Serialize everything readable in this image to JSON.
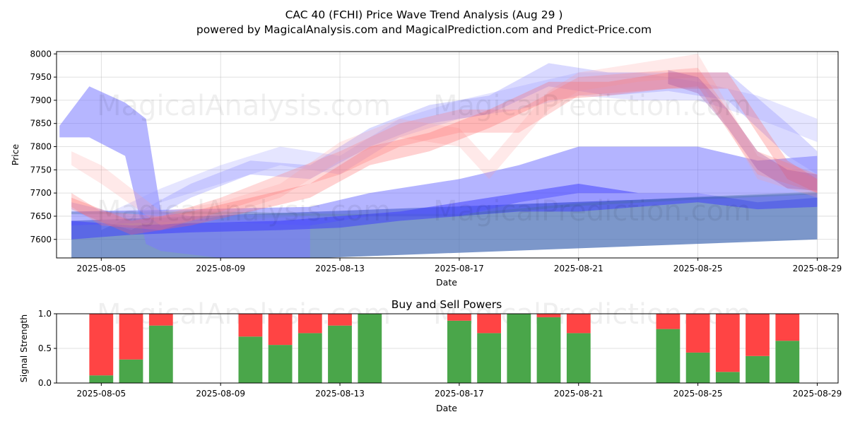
{
  "chart_data": [
    {
      "type": "area",
      "title": "CAC 40 (FCHI) Price Wave Trend Analysis (Aug 29 )",
      "subtitle": "powered by MagicalAnalysis.com and MagicalPrediction.com and Predict-Price.com",
      "xlabel": "Date",
      "ylabel": "Price",
      "x_start": "2025-08-04",
      "x_end": "2025-08-30",
      "xlim_days": [
        -0.5,
        25.7
      ],
      "ylim": [
        7560,
        8005
      ],
      "x_ticks": [
        "2025-08-05",
        "2025-08-09",
        "2025-08-13",
        "2025-08-17",
        "2025-08-21",
        "2025-08-25",
        "2025-08-29"
      ],
      "x_tick_days": [
        1,
        5,
        9,
        13,
        17,
        21,
        25
      ],
      "y_ticks": [
        7600,
        7650,
        7700,
        7750,
        7800,
        7850,
        7900,
        7950,
        8000
      ],
      "grid": true,
      "bands": [
        {
          "name": "base-steel",
          "color": "#4a6fb5",
          "opacity": 0.72,
          "days": [
            0,
            25
          ],
          "upper": [
            7640,
            7700
          ],
          "lower": [
            7540,
            7600
          ]
        },
        {
          "name": "green-edge",
          "color": "#5c9a5c",
          "opacity": 0.45,
          "days": [
            0,
            5,
            9,
            13,
            17,
            21,
            25
          ],
          "upper": [
            7660,
            7660,
            7655,
            7655,
            7678,
            7692,
            7703
          ],
          "lower": [
            7654,
            7654,
            7650,
            7650,
            7672,
            7686,
            7697
          ]
        },
        {
          "name": "blue-rise",
          "color": "#6a6aff",
          "opacity": 0.5,
          "days": [
            0,
            4,
            8,
            10,
            13,
            15,
            17,
            19,
            21,
            23,
            25
          ],
          "upper": [
            7660,
            7665,
            7670,
            7700,
            7730,
            7760,
            7800,
            7800,
            7800,
            7770,
            7780
          ],
          "lower": [
            7630,
            7640,
            7630,
            7650,
            7650,
            7680,
            7700,
            7700,
            7700,
            7680,
            7690
          ]
        },
        {
          "name": "blue-spike",
          "color": "#7a7aff",
          "opacity": 0.55,
          "days": [
            -0.4,
            0.6,
            1.8,
            2.5,
            3,
            5,
            8
          ],
          "upper": [
            7845,
            7930,
            7895,
            7860,
            7660,
            7640,
            7650
          ],
          "lower": [
            7820,
            7820,
            7780,
            7590,
            7575,
            7560,
            7560
          ]
        },
        {
          "name": "blue-low",
          "color": "#3a3aff",
          "opacity": 0.5,
          "days": [
            0,
            2,
            4,
            7,
            9,
            11,
            13,
            15,
            17,
            19,
            21,
            23,
            25
          ],
          "upper": [
            7640,
            7630,
            7635,
            7640,
            7650,
            7660,
            7680,
            7700,
            7720,
            7700,
            7700,
            7680,
            7690
          ],
          "lower": [
            7600,
            7610,
            7615,
            7620,
            7625,
            7640,
            7650,
            7660,
            7660,
            7670,
            7680,
            7665,
            7670
          ]
        },
        {
          "name": "blue-wave-1",
          "color": "#8888ff",
          "opacity": 0.32,
          "days": [
            0,
            2,
            4,
            6,
            8,
            10,
            12,
            14,
            16,
            18,
            20,
            22,
            24,
            25
          ],
          "upper": [
            7680,
            7650,
            7720,
            7770,
            7760,
            7840,
            7890,
            7910,
            7980,
            7960,
            7960,
            7960,
            7850,
            7790
          ],
          "lower": [
            7660,
            7620,
            7690,
            7740,
            7730,
            7800,
            7850,
            7870,
            7930,
            7910,
            7920,
            7900,
            7780,
            7740
          ]
        },
        {
          "name": "blue-wave-2",
          "color": "#9999ff",
          "opacity": 0.25,
          "days": [
            1,
            3,
            5,
            7,
            9,
            11,
            13,
            15,
            17,
            19,
            21,
            23,
            25
          ],
          "upper": [
            7650,
            7710,
            7760,
            7800,
            7780,
            7860,
            7900,
            7930,
            7960,
            7960,
            7940,
            7910,
            7860
          ],
          "lower": [
            7620,
            7680,
            7720,
            7760,
            7740,
            7820,
            7860,
            7880,
            7910,
            7900,
            7900,
            7860,
            7810
          ]
        },
        {
          "name": "red-wave-1",
          "color": "#ff7777",
          "opacity": 0.28,
          "days": [
            0,
            1,
            3,
            5,
            7,
            9,
            11,
            13,
            15,
            17,
            19,
            21,
            23,
            25
          ],
          "upper": [
            7700,
            7660,
            7650,
            7690,
            7740,
            7790,
            7850,
            7880,
            7880,
            7950,
            7960,
            7970,
            7790,
            7740
          ],
          "lower": [
            7670,
            7630,
            7620,
            7660,
            7700,
            7740,
            7800,
            7830,
            7830,
            7910,
            7920,
            7930,
            7740,
            7700
          ]
        },
        {
          "name": "red-wave-2",
          "color": "#ff9999",
          "opacity": 0.22,
          "days": [
            0,
            1,
            3,
            5,
            7,
            9,
            11,
            13,
            14,
            16,
            17,
            19,
            21,
            23,
            25
          ],
          "upper": [
            7790,
            7760,
            7660,
            7680,
            7720,
            7810,
            7860,
            7840,
            7770,
            7920,
            7960,
            7980,
            8000,
            7780,
            7730
          ],
          "lower": [
            7760,
            7720,
            7630,
            7650,
            7690,
            7770,
            7820,
            7800,
            7730,
            7880,
            7920,
            7940,
            7950,
            7730,
            7690
          ]
        },
        {
          "name": "red-wave-3",
          "color": "#ff6666",
          "opacity": 0.3,
          "days": [
            0,
            2,
            4,
            6,
            8,
            10,
            12,
            14,
            16,
            18,
            20,
            22,
            24,
            25
          ],
          "upper": [
            7690,
            7640,
            7660,
            7690,
            7720,
            7800,
            7830,
            7880,
            7940,
            7940,
            7960,
            7960,
            7770,
            7730
          ],
          "lower": [
            7665,
            7610,
            7630,
            7660,
            7690,
            7760,
            7790,
            7840,
            7900,
            7910,
            7925,
            7925,
            7730,
            7700
          ]
        },
        {
          "name": "purple-core",
          "color": "#9a4aa0",
          "opacity": 0.3,
          "days": [
            20,
            21,
            22,
            23,
            24,
            25
          ],
          "upper": [
            7965,
            7950,
            7880,
            7790,
            7750,
            7740
          ],
          "lower": [
            7935,
            7915,
            7840,
            7750,
            7710,
            7705
          ]
        }
      ]
    },
    {
      "type": "bar",
      "title": "Buy and Sell Powers",
      "xlabel": "Date",
      "ylabel": "Signal Strength",
      "ylim": [
        0,
        1
      ],
      "y_ticks": [
        0.0,
        0.5,
        1.0
      ],
      "y_tick_labels": [
        "0.0",
        "0.5",
        "1.0"
      ],
      "x_ticks": [
        "2025-08-05",
        "2025-08-09",
        "2025-08-13",
        "2025-08-17",
        "2025-08-21",
        "2025-08-25",
        "2025-08-29"
      ],
      "x_tick_days": [
        1,
        5,
        9,
        13,
        17,
        21,
        25
      ],
      "xlim_days": [
        -0.5,
        25.7
      ],
      "grid": true,
      "buy_color": "#4aa64a",
      "sell_color": "#ff4444",
      "days": [
        1,
        2,
        3,
        6,
        7,
        8,
        9,
        10,
        13,
        14,
        15,
        16,
        17,
        20,
        21,
        22,
        23,
        24
      ],
      "series": [
        {
          "name": "Buy",
          "values": [
            0.11,
            0.34,
            0.83,
            0.67,
            0.55,
            0.72,
            0.83,
            1.0,
            0.9,
            0.72,
            1.0,
            0.95,
            0.72,
            0.78,
            0.44,
            0.16,
            0.39,
            0.61
          ]
        },
        {
          "name": "Sell",
          "values": [
            0.89,
            0.66,
            0.17,
            0.33,
            0.45,
            0.28,
            0.17,
            0.0,
            0.1,
            0.28,
            0.0,
            0.05,
            0.28,
            0.22,
            0.56,
            0.84,
            0.61,
            0.39
          ]
        }
      ]
    }
  ],
  "watermark": {
    "text1": "MagicalAnalysis.com",
    "text2": "MagicalPrediction.com"
  }
}
